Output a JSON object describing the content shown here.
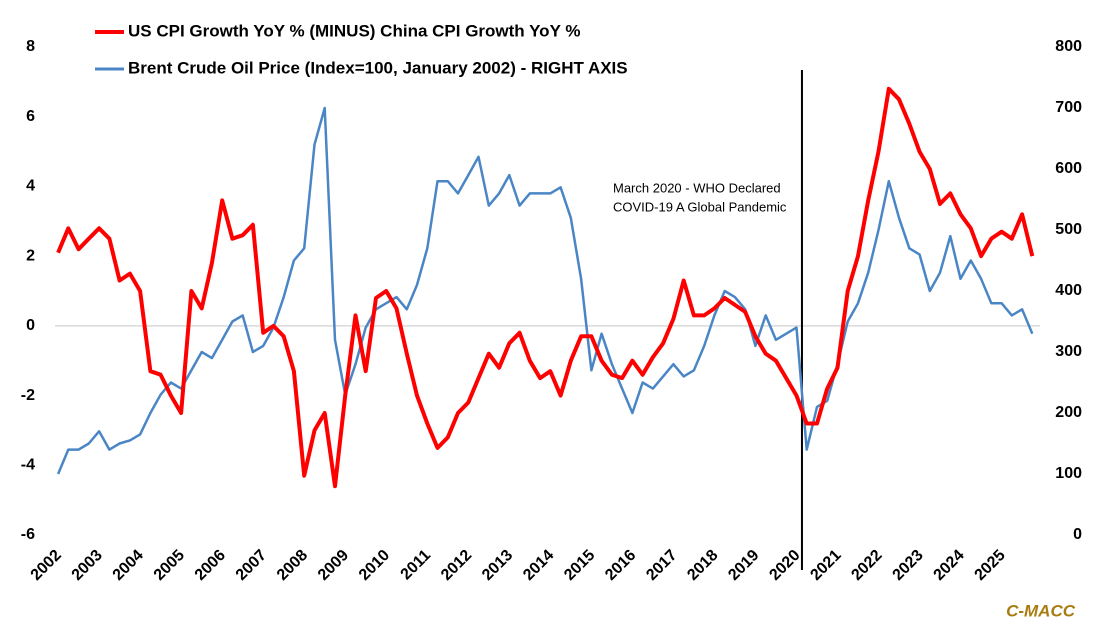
{
  "chart_data": {
    "type": "line",
    "series": [
      {
        "name": "US CPI Growth YoY % (MINUS) China CPI Growth YoY %",
        "color": "#ff0000",
        "axis": "y",
        "values": [
          2.1,
          2.8,
          2.2,
          2.5,
          2.8,
          2.5,
          1.3,
          1.5,
          1.0,
          -1.3,
          -1.4,
          -2.0,
          -2.5,
          1.0,
          0.5,
          1.8,
          3.6,
          2.5,
          2.6,
          2.9,
          -0.2,
          0.0,
          -0.3,
          -1.3,
          -4.3,
          -3.0,
          -2.5,
          -4.6,
          -2.0,
          0.3,
          -1.3,
          0.8,
          1.0,
          0.5,
          -0.8,
          -2.0,
          -2.8,
          -3.5,
          -3.2,
          -2.5,
          -2.2,
          -1.5,
          -0.8,
          -1.2,
          -0.5,
          -0.2,
          -1.0,
          -1.5,
          -1.3,
          -2.0,
          -1.0,
          -0.3,
          -0.3,
          -1.0,
          -1.4,
          -1.5,
          -1.0,
          -1.4,
          -0.9,
          -0.5,
          0.2,
          1.3,
          0.3,
          0.3,
          0.5,
          0.8,
          0.6,
          0.4,
          -0.3,
          -0.8,
          -1.0,
          -1.5,
          -2.0,
          -2.8,
          -2.8,
          -1.8,
          -1.2,
          1.0,
          2.0,
          3.6,
          5.0,
          6.8,
          6.5,
          5.8,
          5.0,
          4.5,
          3.5,
          3.8,
          3.2,
          2.8,
          2.0,
          2.5,
          2.7,
          2.5,
          3.2,
          2.0
        ]
      },
      {
        "name": "Brent Crude Oil Price (Index=100, January 2002) - RIGHT AXIS",
        "color": "#4a86c5",
        "axis": "y2",
        "values": [
          100,
          140,
          140,
          150,
          170,
          140,
          150,
          155,
          165,
          200,
          230,
          250,
          240,
          270,
          300,
          290,
          320,
          350,
          360,
          300,
          310,
          340,
          390,
          450,
          470,
          640,
          700,
          320,
          230,
          280,
          340,
          370,
          380,
          390,
          370,
          410,
          470,
          580,
          580,
          560,
          590,
          620,
          540,
          560,
          590,
          540,
          560,
          560,
          560,
          570,
          520,
          420,
          270,
          330,
          280,
          240,
          200,
          250,
          240,
          260,
          280,
          260,
          270,
          310,
          360,
          400,
          390,
          370,
          310,
          360,
          320,
          330,
          340,
          140,
          210,
          220,
          280,
          350,
          380,
          430,
          500,
          580,
          520,
          470,
          460,
          400,
          430,
          490,
          420,
          450,
          420,
          380,
          380,
          360,
          370,
          330
        ]
      }
    ],
    "xlim": [
      2002,
      2026
    ],
    "xticks": [
      2002,
      2003,
      2004,
      2005,
      2006,
      2007,
      2008,
      2009,
      2010,
      2011,
      2012,
      2013,
      2014,
      2015,
      2016,
      2017,
      2018,
      2019,
      2020,
      2021,
      2022,
      2023,
      2024,
      2025
    ],
    "ylim": [
      -6,
      8
    ],
    "yticks": [
      -6,
      -4,
      -2,
      0,
      2,
      4,
      6,
      8
    ],
    "y2lim": [
      0,
      800
    ],
    "y2ticks": [
      0,
      100,
      200,
      300,
      400,
      500,
      600,
      700,
      800
    ],
    "zero_line": true,
    "legend": "top-left",
    "annotation": {
      "x": 2020.2,
      "lines": [
        "March 2020 - WHO Declared",
        "COVID-19 A Global Pandemic"
      ]
    },
    "source": "C-MACC"
  }
}
